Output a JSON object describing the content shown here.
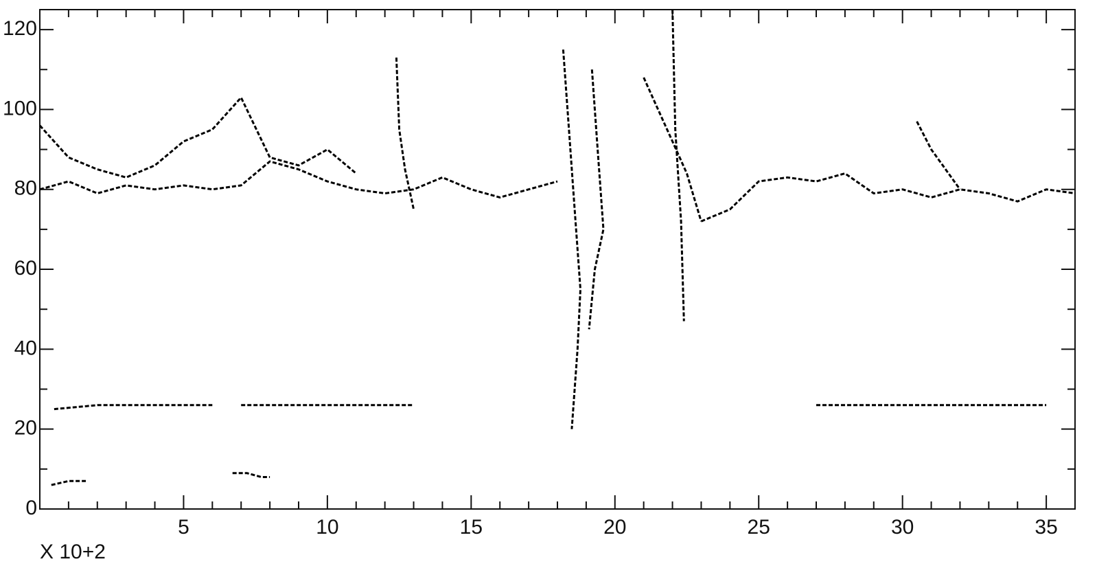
{
  "chart_data": {
    "type": "contour",
    "xlabel": "X  10+2",
    "xlim": [
      0,
      36
    ],
    "ylim": [
      0,
      125
    ],
    "xticks": [
      5,
      10,
      15,
      20,
      25,
      30,
      35
    ],
    "yticks": [
      0,
      20,
      40,
      60,
      80,
      100,
      120
    ],
    "x_minor_ticks": [
      1,
      2,
      3,
      4,
      6,
      7,
      8,
      9,
      11,
      12,
      13,
      14,
      16,
      17,
      18,
      19,
      21,
      22,
      23,
      24,
      26,
      27,
      28,
      29,
      31,
      32,
      33,
      34
    ],
    "y_minor_ticks": [
      10,
      30,
      50,
      70,
      90,
      110
    ],
    "color": "#000000",
    "series": [
      {
        "x": [
          0,
          1,
          2,
          3,
          4,
          5,
          6,
          7,
          8,
          9,
          10,
          11,
          12,
          13,
          14,
          15,
          16,
          17,
          18
        ],
        "values": [
          80,
          82,
          79,
          81,
          80,
          81,
          80,
          81,
          87,
          85,
          82,
          80,
          79,
          80,
          83,
          80,
          78,
          80,
          82
        ]
      },
      {
        "x": [
          23,
          24,
          25,
          26,
          27,
          28,
          29,
          30,
          31,
          32,
          33,
          34,
          35,
          36
        ],
        "values": [
          72,
          75,
          82,
          83,
          82,
          84,
          79,
          80,
          78,
          80,
          79,
          77,
          80,
          79
        ]
      },
      {
        "x": [
          0,
          1,
          2,
          3,
          4,
          5,
          6,
          7,
          8,
          9,
          10,
          11
        ],
        "values": [
          96,
          88,
          85,
          83,
          86,
          92,
          95,
          103,
          88,
          86,
          90,
          84
        ]
      },
      {
        "x": [
          18.2,
          18.4,
          18.6,
          18.8,
          18.7,
          18.5
        ],
        "values": [
          115,
          95,
          75,
          55,
          40,
          20
        ]
      },
      {
        "x": [
          19.2,
          19.4,
          19.6,
          19.3,
          19.1
        ],
        "values": [
          110,
          90,
          70,
          60,
          45
        ]
      },
      {
        "x": [
          22,
          22.1,
          22.3,
          22.4
        ],
        "values": [
          125,
          95,
          72,
          47
        ]
      },
      {
        "x": [
          21,
          21.5,
          22,
          22.5,
          23
        ],
        "values": [
          108,
          100,
          92,
          84,
          72
        ]
      },
      {
        "x": [
          12.4,
          12.5,
          12.7,
          13
        ],
        "values": [
          113,
          95,
          85,
          75
        ]
      },
      {
        "x": [
          30.5,
          31,
          31.5,
          32
        ],
        "values": [
          97,
          90,
          85,
          80
        ]
      },
      {
        "x": [
          0.5,
          2,
          4,
          6,
          null,
          7,
          9,
          11,
          13,
          null,
          27,
          30,
          33,
          35
        ],
        "values": [
          25,
          26,
          26,
          26,
          null,
          26,
          26,
          26,
          26,
          null,
          26,
          26,
          26,
          26
        ]
      },
      {
        "x": [
          0.4,
          1,
          1.6,
          null,
          6.7,
          7.2,
          7.7,
          8
        ],
        "values": [
          6,
          7,
          7,
          null,
          9,
          9,
          8,
          8
        ]
      }
    ]
  }
}
